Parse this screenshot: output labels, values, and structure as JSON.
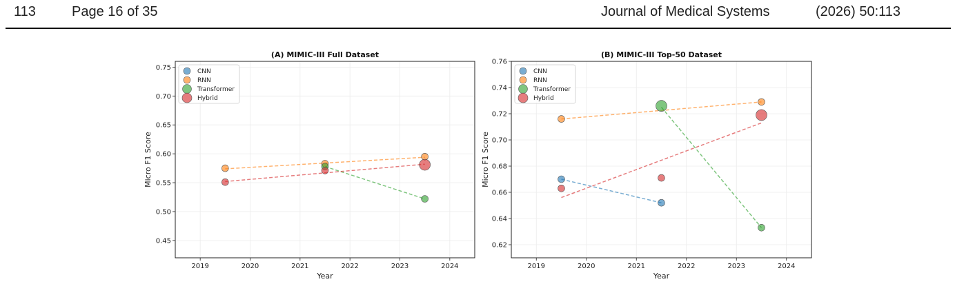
{
  "header": {
    "page_number": "113",
    "page_of": "Page 16 of 35",
    "journal": "Journal of Medical Systems",
    "citation": "(2026) 50:113"
  },
  "chart_data": [
    {
      "type": "scatter",
      "title": "(A) MIMIC-III Full Dataset",
      "xlabel": "Year",
      "ylabel": "Micro F1 Score",
      "xlim": [
        2018.5,
        2024.5
      ],
      "ylim": [
        0.42,
        0.76
      ],
      "xticks": [
        2019,
        2020,
        2021,
        2022,
        2023,
        2024
      ],
      "yticks": [
        0.45,
        0.5,
        0.55,
        0.6,
        0.65,
        0.7,
        0.75
      ],
      "grid": true,
      "legend_position": "top-left",
      "series": [
        {
          "name": "CNN",
          "color": "#1f77b4",
          "points": [],
          "trend": []
        },
        {
          "name": "RNN",
          "color": "#ff7f0e",
          "points": [
            [
              2019.5,
              0.575
            ],
            [
              2021.5,
              0.583
            ],
            [
              2023.5,
              0.595
            ]
          ],
          "trend": [
            [
              2019.5,
              0.574
            ],
            [
              2023.5,
              0.594
            ]
          ]
        },
        {
          "name": "Transformer",
          "color": "#2ca02c",
          "points": [
            [
              2021.5,
              0.578
            ],
            [
              2023.5,
              0.522
            ]
          ],
          "trend": [
            [
              2021.5,
              0.578
            ],
            [
              2023.5,
              0.522
            ]
          ]
        },
        {
          "name": "Hybrid",
          "color": "#d62728",
          "points": [
            [
              2019.5,
              0.551
            ],
            [
              2021.5,
              0.571
            ],
            [
              2023.5,
              0.581
            ]
          ],
          "trend": [
            [
              2019.5,
              0.552
            ],
            [
              2023.5,
              0.582
            ]
          ]
        }
      ]
    },
    {
      "type": "scatter",
      "title": "(B) MIMIC-III Top-50 Dataset",
      "xlabel": "Year",
      "ylabel": "Micro F1 Score",
      "xlim": [
        2018.5,
        2024.5
      ],
      "ylim": [
        0.61,
        0.76
      ],
      "xticks": [
        2019,
        2020,
        2021,
        2022,
        2023,
        2024
      ],
      "yticks": [
        0.62,
        0.64,
        0.66,
        0.68,
        0.7,
        0.72,
        0.74,
        0.76
      ],
      "grid": true,
      "legend_position": "top-left",
      "series": [
        {
          "name": "CNN",
          "color": "#1f77b4",
          "points": [
            [
              2019.5,
              0.67
            ],
            [
              2021.5,
              0.652
            ]
          ],
          "trend": [
            [
              2019.5,
              0.67
            ],
            [
              2021.5,
              0.652
            ]
          ]
        },
        {
          "name": "RNN",
          "color": "#ff7f0e",
          "points": [
            [
              2019.5,
              0.716
            ],
            [
              2023.5,
              0.729
            ]
          ],
          "trend": [
            [
              2019.5,
              0.716
            ],
            [
              2023.5,
              0.729
            ]
          ]
        },
        {
          "name": "Transformer",
          "color": "#2ca02c",
          "points": [
            [
              2021.5,
              0.726
            ],
            [
              2023.5,
              0.633
            ]
          ],
          "trend": [
            [
              2021.5,
              0.725
            ],
            [
              2023.5,
              0.633
            ]
          ]
        },
        {
          "name": "Hybrid",
          "color": "#d62728",
          "points": [
            [
              2019.5,
              0.663
            ],
            [
              2021.5,
              0.671
            ],
            [
              2023.5,
              0.719
            ]
          ],
          "trend": [
            [
              2019.5,
              0.656
            ],
            [
              2023.5,
              0.713
            ]
          ]
        }
      ]
    }
  ]
}
